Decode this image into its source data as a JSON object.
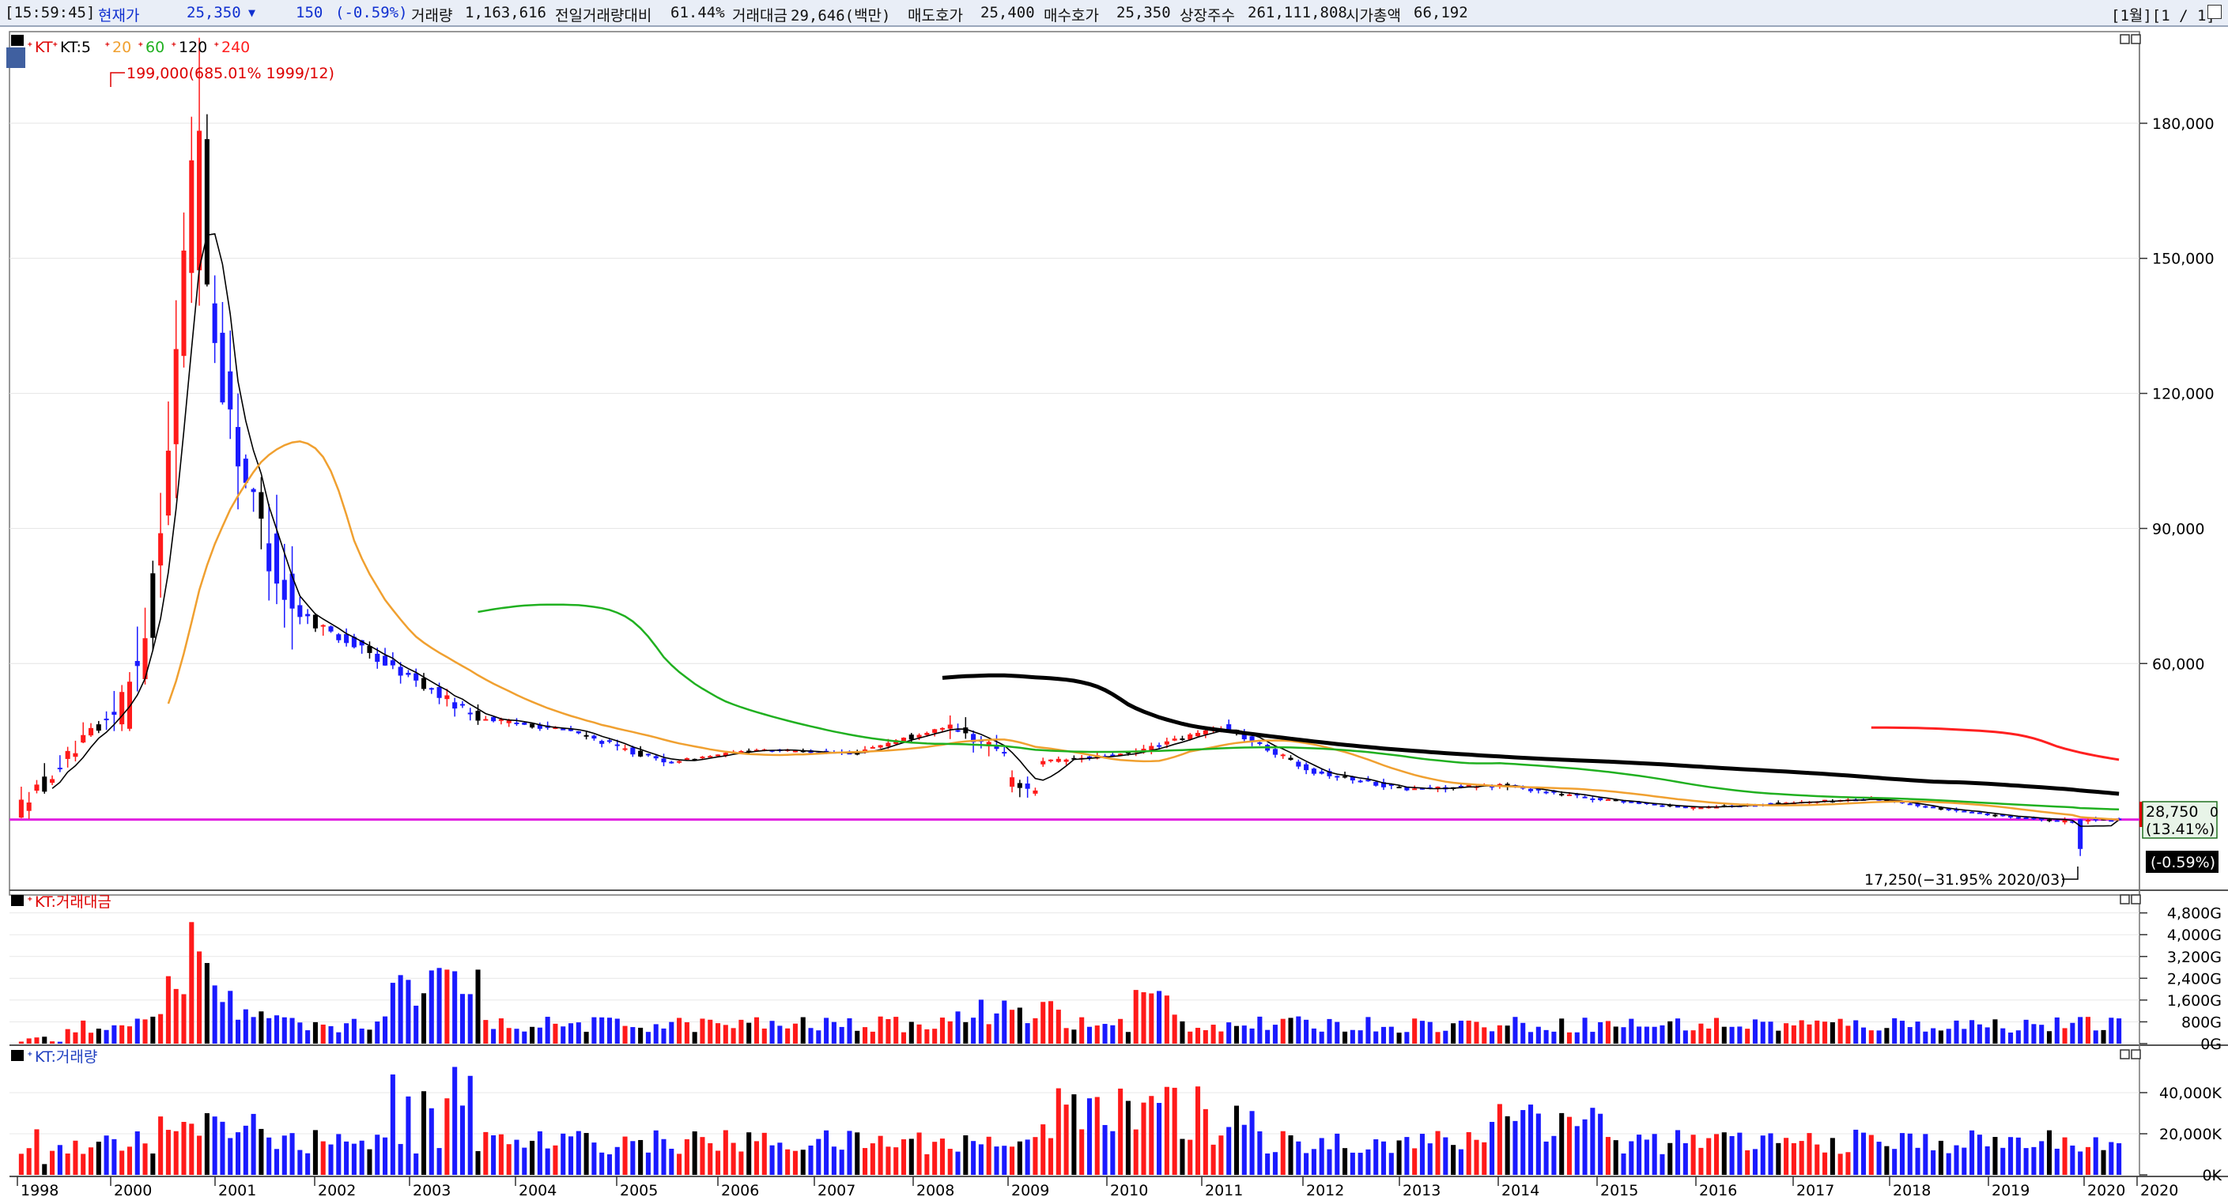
{
  "quote_bar": {
    "time": "[15:59:45]",
    "label_price": "현재가",
    "price": "25,350",
    "down_icon": "triangle-down-icon",
    "change": "150",
    "change_pct": "(-0.59%)",
    "volume_label": "거래량",
    "volume": "1,163,616",
    "prev_ratio_label": "전일거래량대비",
    "prev_ratio": "61.44%",
    "amount_label": "거래대금",
    "amount": "29,646(백만)",
    "ask_label": "매도호가",
    "ask": "25,400",
    "bid_label": "매수호가",
    "bid": "25,350",
    "shares_label": "상장주수",
    "shares": "261,111,808",
    "mcap_label": "시가총액",
    "mcap": "66,192",
    "page_info": "[1월][1 / 1]"
  },
  "price_panel": {
    "legend_stock": "KT",
    "legend_ma": [
      {
        "label": "KT:5",
        "color": "#000000"
      },
      {
        "label": "20",
        "color": "#f0a030"
      },
      {
        "label": "60",
        "color": "#20b020"
      },
      {
        "label": "120",
        "color": "#000000"
      },
      {
        "label": "240",
        "color": "#ff2020"
      }
    ],
    "high_annotation": "199,000(685.01% 1999/12)",
    "low_annotation": "17,250(−31.95% 2020/03)",
    "right_tag_price": "28,750",
    "right_tag_pct": "(13.41%)",
    "right_tag_change": "(-0.59%)",
    "right_tag_partial": "0",
    "horizontal_line_value": 25350,
    "horizontal_line_color": "#e020e0",
    "up_color": "#ff1a1a",
    "down_color": "#1a1aff",
    "flat_color": "#000000"
  },
  "amount_panel": {
    "title": "KT:거래대금"
  },
  "volume_panel": {
    "title": "KT:거래량"
  },
  "chart_data": [
    {
      "type": "candlestick",
      "title": "",
      "unit": "monthly",
      "x_ticks": [
        "1998",
        "2000",
        "2001",
        "2002",
        "2003",
        "2004",
        "2005",
        "2006",
        "2007",
        "2008",
        "2009",
        "2010",
        "2011",
        "2012",
        "2013",
        "2014",
        "2015",
        "2016",
        "2017",
        "2018",
        "2019",
        "2020",
        "2020"
      ],
      "y_ticks": [
        "60,000",
        "90,000",
        "120,000",
        "150,000",
        "180,000"
      ],
      "y_tick_values": [
        60000,
        90000,
        120000,
        150000,
        180000
      ],
      "ylim": [
        10000,
        200000
      ],
      "annual_summary": [
        {
          "year": 1998,
          "open": 27000,
          "high": 63000,
          "low": 25000,
          "close": 48000
        },
        {
          "year": 1999,
          "open": 48000,
          "high": 199000,
          "low": 46000,
          "close": 180000
        },
        {
          "year": 2000,
          "open": 180000,
          "high": 182000,
          "low": 60000,
          "close": 72000
        },
        {
          "year": 2001,
          "open": 72000,
          "high": 85000,
          "low": 55000,
          "close": 60000
        },
        {
          "year": 2002,
          "open": 60000,
          "high": 66000,
          "low": 41000,
          "close": 48000
        },
        {
          "year": 2003,
          "open": 48000,
          "high": 55000,
          "low": 42000,
          "close": 45000
        },
        {
          "year": 2004,
          "open": 45000,
          "high": 47000,
          "low": 33000,
          "close": 38000
        },
        {
          "year": 2005,
          "open": 38000,
          "high": 43000,
          "low": 37000,
          "close": 41000
        },
        {
          "year": 2006,
          "open": 41000,
          "high": 44000,
          "low": 37000,
          "close": 40000
        },
        {
          "year": 2007,
          "open": 40000,
          "high": 50000,
          "low": 39000,
          "close": 46000
        },
        {
          "year": 2008,
          "open": 46000,
          "high": 56000,
          "low": 26000,
          "close": 38000
        },
        {
          "year": 2009,
          "open": 38000,
          "high": 42000,
          "low": 32000,
          "close": 40000
        },
        {
          "year": 2010,
          "open": 40000,
          "high": 51000,
          "low": 40000,
          "close": 46000
        },
        {
          "year": 2011,
          "open": 46000,
          "high": 48000,
          "low": 34000,
          "close": 36000
        },
        {
          "year": 2012,
          "open": 36000,
          "high": 38000,
          "low": 25500,
          "close": 32000
        },
        {
          "year": 2013,
          "open": 32000,
          "high": 38000,
          "low": 28000,
          "close": 33000
        },
        {
          "year": 2014,
          "open": 33000,
          "high": 36000,
          "low": 27000,
          "close": 30000
        },
        {
          "year": 2015,
          "open": 30000,
          "high": 31000,
          "low": 26000,
          "close": 28000
        },
        {
          "year": 2016,
          "open": 28000,
          "high": 31000,
          "low": 25000,
          "close": 29000
        },
        {
          "year": 2017,
          "open": 29000,
          "high": 34000,
          "low": 28000,
          "close": 30000
        },
        {
          "year": 2018,
          "open": 30000,
          "high": 30000,
          "low": 25000,
          "close": 27000
        },
        {
          "year": 2019,
          "open": 27000,
          "high": 29000,
          "low": 24000,
          "close": 25000
        },
        {
          "year": 2020,
          "open": 25000,
          "high": 26000,
          "low": 17250,
          "close": 25350
        }
      ],
      "ma_series": [
        {
          "name": "20",
          "color": "#f0a030"
        },
        {
          "name": "60",
          "color": "#20b020"
        },
        {
          "name": "120",
          "color": "#000000"
        },
        {
          "name": "240",
          "color": "#ff2020"
        }
      ]
    },
    {
      "type": "bar",
      "title": "KT:거래대금",
      "y_ticks": [
        "0G",
        "800G",
        "1,600G",
        "2,400G",
        "3,200G",
        "4,000G",
        "4,800G"
      ],
      "y_tick_values": [
        0,
        800,
        1600,
        2400,
        3200,
        4000,
        4800
      ],
      "ylim": [
        0,
        5400
      ],
      "unit": "G"
    },
    {
      "type": "bar",
      "title": "KT:거래량",
      "y_ticks": [
        "0K",
        "20,000K",
        "40,000K"
      ],
      "y_tick_values": [
        0,
        20000,
        40000
      ],
      "ylim": [
        0,
        60000
      ],
      "unit": "K"
    }
  ]
}
